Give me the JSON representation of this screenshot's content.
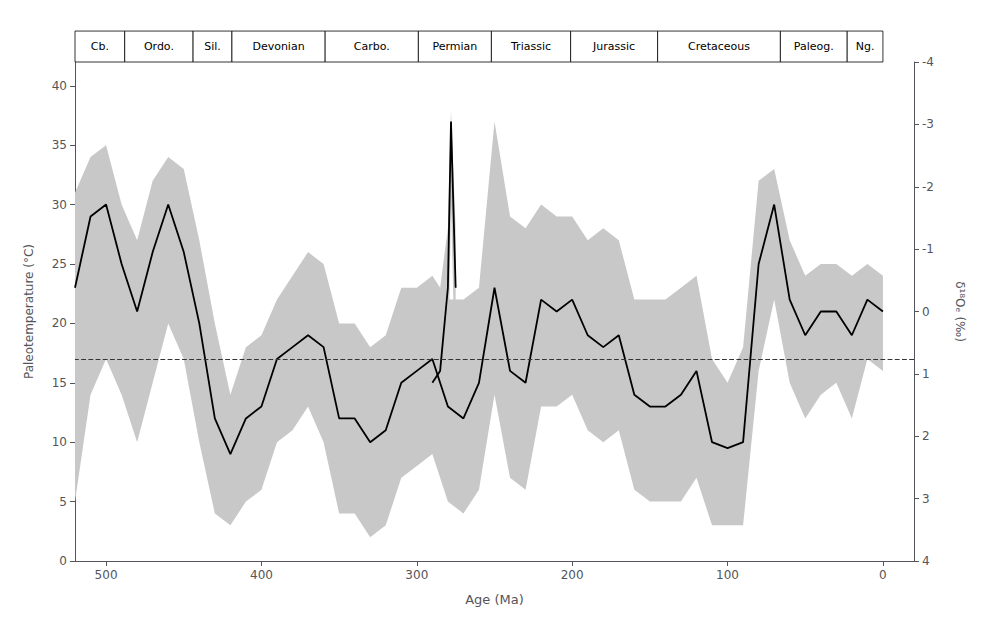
{
  "chart_data": {
    "type": "line",
    "xlabel": "Age (Ma)",
    "ylabel": "Paleotemperature (°C)",
    "y2label": "δ¹⁸Oₑ (‰)",
    "xlim": [
      520,
      -20
    ],
    "xticks": [
      500,
      400,
      300,
      200,
      100,
      0
    ],
    "ylim": [
      0,
      42
    ],
    "yticks": [
      0,
      5,
      10,
      15,
      20,
      25,
      30,
      35,
      40
    ],
    "y2lim": [
      4,
      -4
    ],
    "y2ticks": [
      -4,
      -3,
      -2,
      -1,
      0,
      1,
      2,
      3,
      4
    ],
    "grid": false,
    "series": [
      {
        "type": "band",
        "color": "#c8c8c8",
        "x": [
          520,
          510,
          500,
          490,
          480,
          470,
          460,
          450,
          440,
          430,
          420,
          410,
          400,
          390,
          380,
          370,
          360,
          350,
          340,
          330,
          320,
          310,
          300,
          290,
          280,
          270,
          260,
          250,
          240,
          230,
          220,
          210,
          200,
          190,
          180,
          170,
          160,
          150,
          140,
          130,
          120,
          110,
          100,
          90,
          80,
          70,
          60,
          50,
          40,
          30,
          20,
          10,
          0
        ],
        "upper": [
          31,
          34,
          35,
          30,
          27,
          32,
          34,
          33,
          27,
          20,
          14,
          18,
          19,
          22,
          24,
          26,
          25,
          20,
          20,
          18,
          19,
          23,
          23,
          24,
          22,
          22,
          23,
          37,
          29,
          28,
          30,
          29,
          29,
          27,
          28,
          27,
          22,
          22,
          22,
          23,
          24,
          17,
          15,
          18,
          32,
          33,
          27,
          24,
          25,
          25,
          24,
          25,
          24
        ],
        "lower": [
          5,
          14,
          17,
          14,
          10,
          15,
          20,
          17,
          10,
          4,
          3,
          5,
          6,
          10,
          11,
          13,
          10,
          4,
          4,
          2,
          3,
          7,
          8,
          9,
          5,
          4,
          6,
          14,
          7,
          6,
          13,
          13,
          14,
          11,
          10,
          11,
          6,
          5,
          5,
          5,
          7,
          3,
          3,
          3,
          16,
          22,
          15,
          12,
          14,
          15,
          12,
          17,
          16
        ]
      },
      {
        "type": "line",
        "color": "#000000",
        "x": [
          520,
          510,
          500,
          490,
          480,
          470,
          460,
          450,
          440,
          430,
          420,
          410,
          400,
          390,
          380,
          370,
          360,
          350,
          340,
          330,
          320,
          310,
          300,
          290,
          280,
          270,
          260,
          250,
          240,
          230,
          220,
          210,
          200,
          190,
          180,
          170,
          160,
          150,
          140,
          130,
          120,
          110,
          100,
          90,
          80,
          70,
          60,
          50,
          40,
          30,
          20,
          10,
          0
        ],
        "values": [
          23,
          29,
          30,
          25,
          21,
          26,
          30,
          26,
          20,
          12,
          9,
          12,
          13,
          17,
          18,
          19,
          18,
          12,
          12,
          10,
          11,
          15,
          16,
          17,
          13,
          12,
          15,
          23,
          16,
          15,
          22,
          21,
          22,
          19,
          18,
          19,
          14,
          13,
          13,
          14,
          16,
          10,
          9.5,
          10,
          25,
          30,
          22,
          19,
          21,
          21,
          19,
          22,
          21
        ]
      },
      {
        "type": "band",
        "color": "#c8c8c8",
        "x": [
          290,
          285,
          280,
          278,
          275
        ],
        "upper": [
          22,
          23,
          28,
          38,
          28
        ],
        "lower": [
          9,
          9,
          14,
          30,
          14
        ]
      },
      {
        "type": "line",
        "color": "#000000",
        "x": [
          290,
          285,
          280,
          278,
          275
        ],
        "values": [
          15,
          16,
          23,
          37,
          23
        ]
      }
    ],
    "hlines": [
      {
        "value": 17.0,
        "color": "#333333",
        "line_style": "dashed"
      }
    ],
    "periods": [
      {
        "name": "Cb.",
        "xmin": 520,
        "xmax": 488
      },
      {
        "name": "Ordo.",
        "xmin": 488,
        "xmax": 444
      },
      {
        "name": "Sil.",
        "xmin": 444,
        "xmax": 419
      },
      {
        "name": "Devonian",
        "xmin": 419,
        "xmax": 359
      },
      {
        "name": "Carbo.",
        "xmin": 359,
        "xmax": 299
      },
      {
        "name": "Permian",
        "xmin": 299,
        "xmax": 252
      },
      {
        "name": "Triassic",
        "xmin": 252,
        "xmax": 201
      },
      {
        "name": "Jurassic",
        "xmin": 201,
        "xmax": 145
      },
      {
        "name": "Cretaceous",
        "xmin": 145,
        "xmax": 66
      },
      {
        "name": "Paleog.",
        "xmin": 66,
        "xmax": 23
      },
      {
        "name": "Ng.",
        "xmin": 23,
        "xmax": 0
      }
    ]
  }
}
